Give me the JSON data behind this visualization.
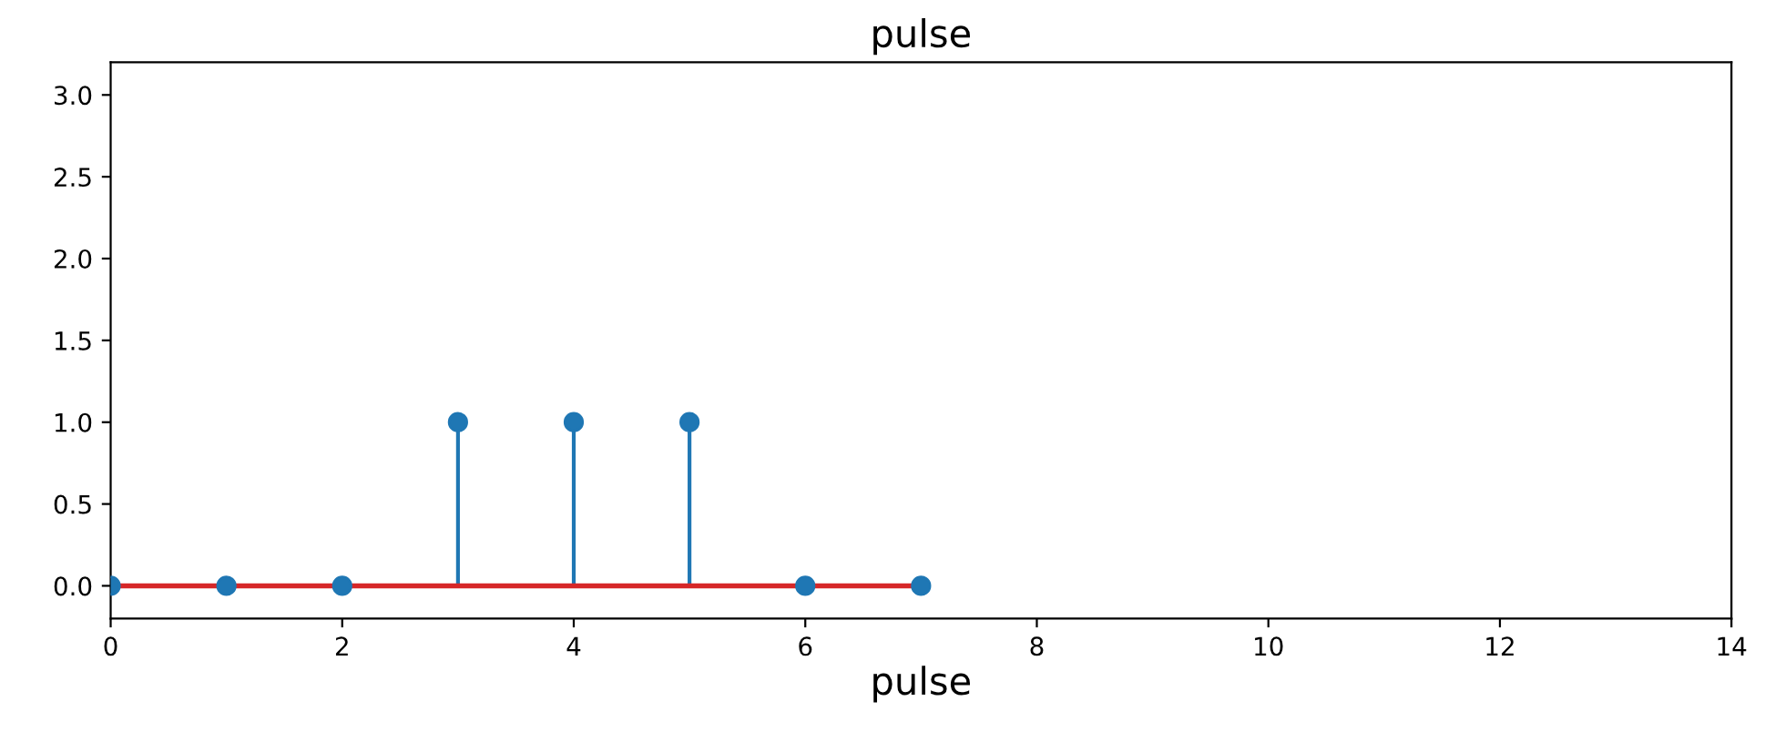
{
  "chart_data": {
    "type": "lollipop",
    "title": "pulse",
    "xlabel": "pulse",
    "x": [
      0,
      1,
      2,
      3,
      4,
      5,
      6,
      7
    ],
    "series": [
      {
        "color": "#1f77b4",
        "marker": "circle",
        "values": [
          0,
          0,
          0,
          1,
          1,
          1,
          0,
          0
        ]
      },
      {
        "type": "line",
        "x": [
          0,
          7
        ],
        "color": "#d62728",
        "marker": "none",
        "values": [
          0,
          0
        ]
      }
    ],
    "xlim": [
      0,
      14
    ],
    "xticks": [
      0,
      2,
      4,
      6,
      8,
      10,
      12,
      14
    ],
    "ylim": [
      -0.2,
      3.2
    ],
    "yticks": [
      {
        "value": 0,
        "label": "0.0"
      },
      {
        "value": 0.5,
        "label": "0.5"
      },
      {
        "value": 1,
        "label": "1.0"
      },
      {
        "value": 1.5,
        "label": "1.5"
      },
      {
        "value": 2,
        "label": "2.0"
      },
      {
        "value": 2.5,
        "label": "2.5"
      },
      {
        "value": 3,
        "label": "3.0"
      }
    ],
    "grid": false,
    "legend": false
  }
}
